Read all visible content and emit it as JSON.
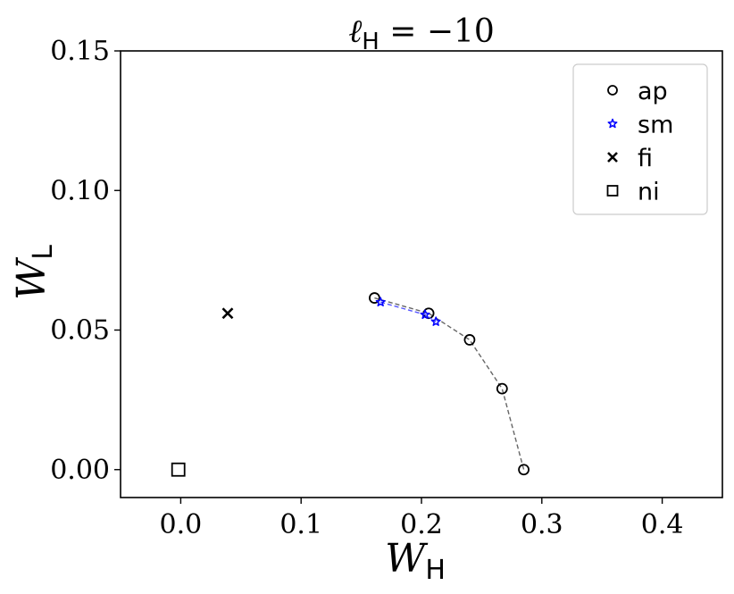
{
  "chart_data": {
    "type": "scatter",
    "title_prefix": "ℓ",
    "title_sub": "H",
    "title_rest": " = −10",
    "xlabel_main": "W",
    "xlabel_sub": "H",
    "ylabel_main": "W",
    "ylabel_sub": "L",
    "xlim": [
      -0.05,
      0.45
    ],
    "ylim": [
      -0.01,
      0.15
    ],
    "xticks": [
      0.0,
      0.1,
      0.2,
      0.3,
      0.4
    ],
    "xtick_labels": [
      "0.0",
      "0.1",
      "0.2",
      "0.3",
      "0.4"
    ],
    "yticks": [
      0.0,
      0.05,
      0.1,
      0.15
    ],
    "ytick_labels": [
      "0.00",
      "0.05",
      "0.10",
      "0.15"
    ],
    "grid": false,
    "legend_position": "top-right",
    "series": [
      {
        "name": "ap",
        "marker": "circle",
        "color": "#000000",
        "line_color": "#666666",
        "dashed_line": true,
        "points": [
          {
            "x": 0.161,
            "y": 0.0615
          },
          {
            "x": 0.206,
            "y": 0.056
          },
          {
            "x": 0.24,
            "y": 0.0465
          },
          {
            "x": 0.267,
            "y": 0.029
          },
          {
            "x": 0.285,
            "y": 0.0
          }
        ]
      },
      {
        "name": "sm",
        "marker": "star",
        "color": "#0000ff",
        "line_color": "#5555ff",
        "dashed_line": true,
        "points": [
          {
            "x": 0.166,
            "y": 0.06
          },
          {
            "x": 0.203,
            "y": 0.0555
          },
          {
            "x": 0.212,
            "y": 0.053
          }
        ]
      },
      {
        "name": "fi",
        "marker": "x",
        "color": "#000000",
        "dashed_line": false,
        "points": [
          {
            "x": 0.039,
            "y": 0.056
          }
        ]
      },
      {
        "name": "ni",
        "marker": "square",
        "color": "#000000",
        "dashed_line": false,
        "points": [
          {
            "x": -0.002,
            "y": 0.0
          }
        ]
      }
    ]
  }
}
